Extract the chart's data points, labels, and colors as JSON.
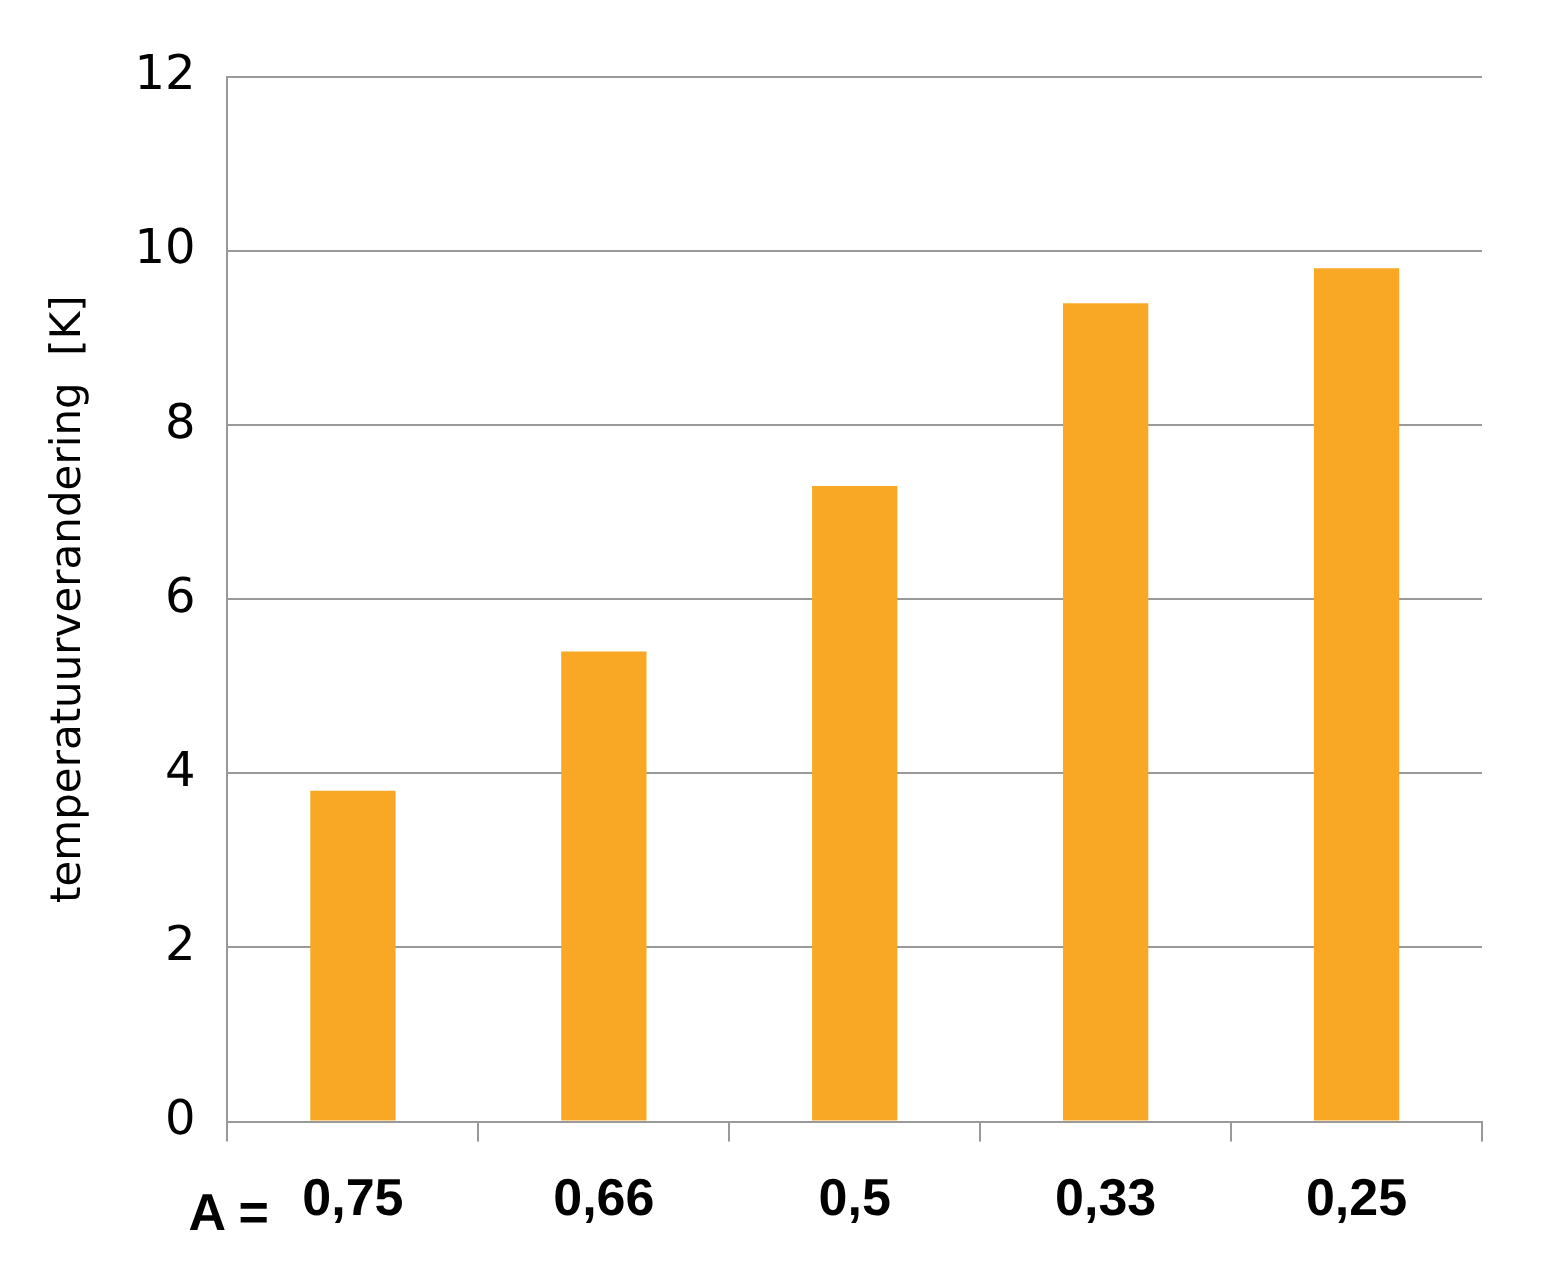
{
  "chart_data": {
    "type": "bar",
    "ylabel": "temperatuurverandering  [K]",
    "xlabel": "A =",
    "categories": [
      "0,75",
      "0,66",
      "0,5",
      "0,33",
      "0,25"
    ],
    "values": [
      3.8,
      5.4,
      7.3,
      9.4,
      9.8
    ],
    "color": "#f9a825",
    "ylim": [
      0,
      12
    ],
    "yticks": [
      0,
      2,
      4,
      6,
      8,
      10,
      12
    ],
    "grid": "y"
  }
}
